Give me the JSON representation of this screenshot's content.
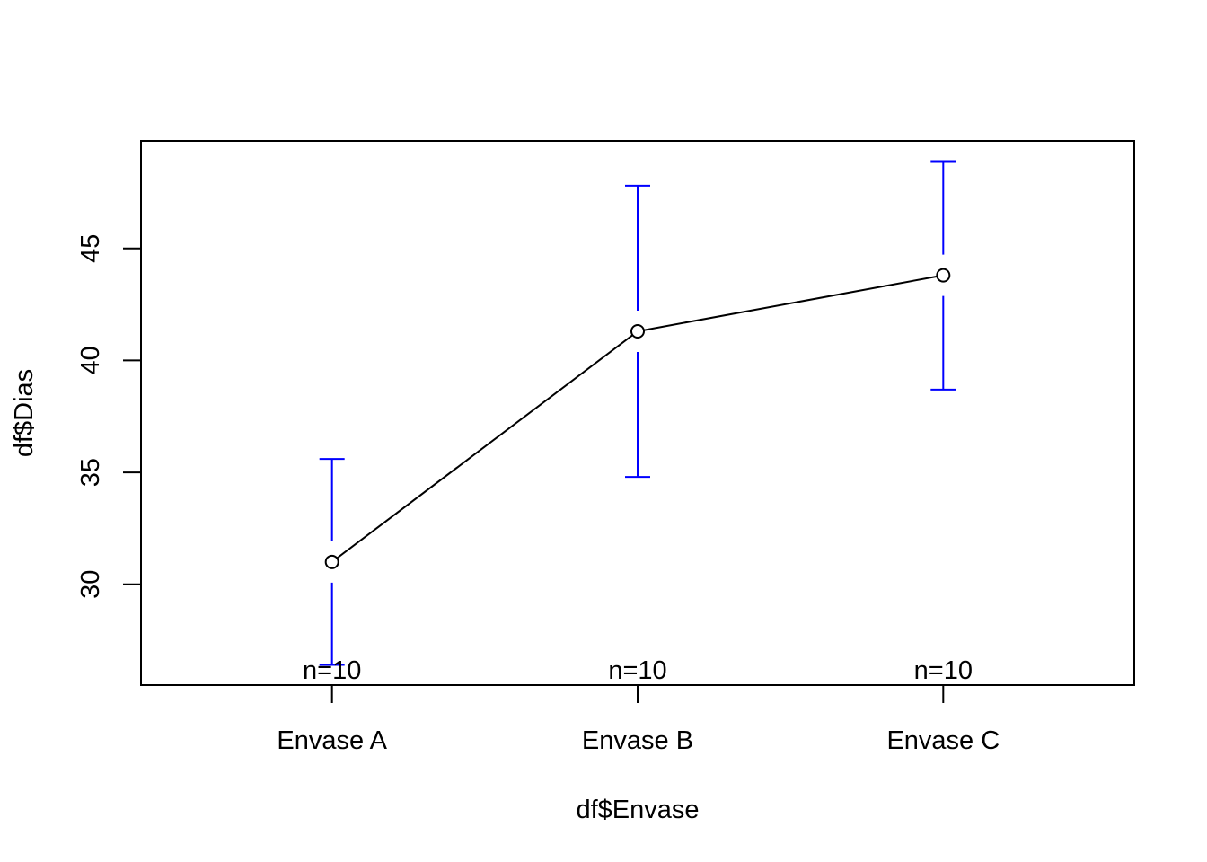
{
  "chart_data": {
    "type": "line",
    "xlabel": "df$Envase",
    "ylabel": "df$Dias",
    "categories": [
      "Envase A",
      "Envase B",
      "Envase C"
    ],
    "means": [
      31.0,
      41.3,
      43.8
    ],
    "ci_lower": [
      26.4,
      34.8,
      38.7
    ],
    "ci_upper": [
      35.6,
      47.8,
      48.9
    ],
    "n_labels": [
      "n=10",
      "n=10",
      "n=10"
    ],
    "ylim": [
      25.5,
      49.8
    ],
    "yticks": [
      30,
      35,
      40,
      45
    ],
    "xlim": [
      0.375,
      3.625
    ],
    "grid": false,
    "line_color": "#000000",
    "errorbar_color": "#0000ff"
  }
}
